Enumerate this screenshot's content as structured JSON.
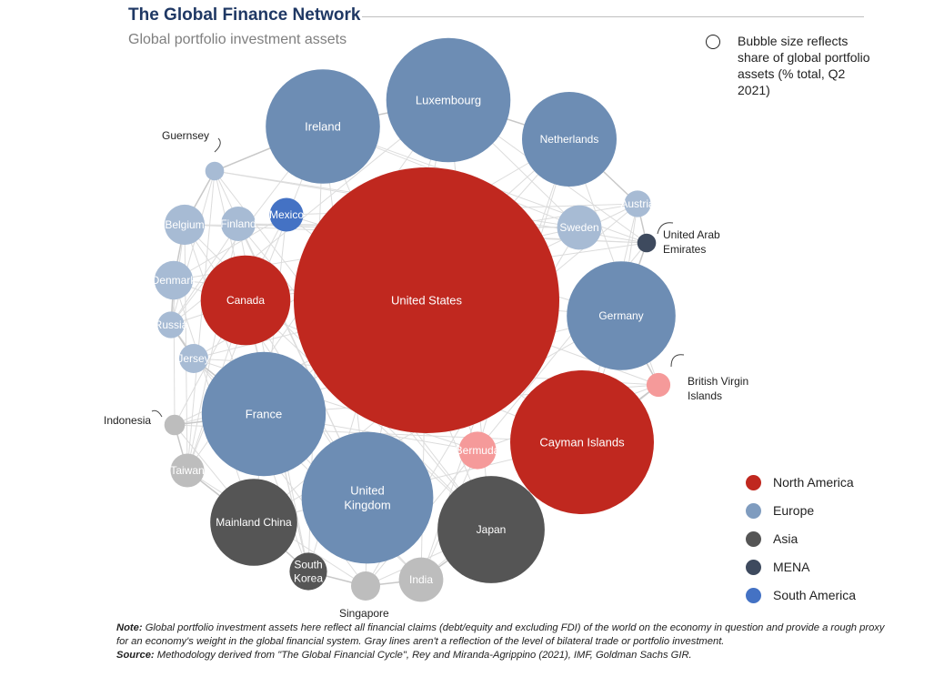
{
  "title": "The Global Finance Network",
  "subtitle": "Global portfolio investment assets",
  "size_note": "Bubble size reflects share of global portfolio assets (% total, Q2 2021)",
  "legend": [
    {
      "label": "North America",
      "color": "#c0281f"
    },
    {
      "label": "Europe",
      "color": "#7f9cbf"
    },
    {
      "label": "Asia",
      "color": "#555555"
    },
    {
      "label": "MENA",
      "color": "#3e4a5e"
    },
    {
      "label": "South America",
      "color": "#4472c4"
    }
  ],
  "note": {
    "label": "Note:",
    "text": "Global portfolio investment assets here reflect all financial claims (debt/equity and excluding FDI) of the world on the economy in question and provide a rough proxy for an economy's weight in the global financial system. Gray lines aren't a reflection of the level of bilateral trade or portfolio investment."
  },
  "source": {
    "label": "Source:",
    "text": "Methodology derived from \"The Global Financial Cycle\", Rey and Miranda-Agrippino (2021), IMF, Goldman Sachs GIR."
  },
  "chart_data": {
    "type": "bubble",
    "size_measure": "share of global portfolio assets (% total, Q2 2021)",
    "colors": {
      "north_america": "#c0281f",
      "europe": "#6d8db4",
      "europe_light": "#a7bbd4",
      "asia": "#555555",
      "asia_light": "#bdbdbd",
      "mena": "#3e4a5e",
      "south_america": "#4472c4",
      "offshore_light": "#f59a9a"
    },
    "bubbles": [
      {
        "label": "United States",
        "region": "North America",
        "shade": "north_america",
        "relative_size": 1.0
      },
      {
        "label": "Luxembourg",
        "region": "Europe",
        "shade": "europe",
        "relative_size": 0.219
      },
      {
        "label": "Cayman Islands",
        "region": "North America",
        "shade": "north_america",
        "relative_size": 0.293
      },
      {
        "label": "United Kingdom",
        "region": "Europe",
        "shade": "europe",
        "relative_size": 0.246
      },
      {
        "label": "France",
        "region": "Europe",
        "shade": "europe",
        "relative_size": 0.218
      },
      {
        "label": "Ireland",
        "region": "Europe",
        "shade": "europe",
        "relative_size": 0.185
      },
      {
        "label": "Germany",
        "region": "Europe",
        "shade": "europe",
        "relative_size": 0.168
      },
      {
        "label": "Japan",
        "region": "Asia",
        "shade": "asia",
        "relative_size": 0.163
      },
      {
        "label": "Netherlands",
        "region": "Europe",
        "shade": "europe",
        "relative_size": 0.127
      },
      {
        "label": "Canada",
        "region": "North America",
        "shade": "north_america",
        "relative_size": 0.114
      },
      {
        "label": "Mainland China",
        "region": "Asia",
        "shade": "asia",
        "relative_size": 0.107
      },
      {
        "label": "Sweden",
        "region": "Europe",
        "shade": "europe_light",
        "relative_size": 0.028
      },
      {
        "label": "India",
        "region": "Asia",
        "shade": "asia_light",
        "relative_size": 0.028
      },
      {
        "label": "Belgium",
        "region": "Europe",
        "shade": "europe_light",
        "relative_size": 0.023
      },
      {
        "label": "Denmark",
        "region": "Europe",
        "shade": "europe_light",
        "relative_size": 0.021
      },
      {
        "label": "South Korea",
        "region": "Asia",
        "shade": "asia",
        "relative_size": 0.02
      },
      {
        "label": "Bermuda",
        "region": "North America",
        "shade": "offshore_light",
        "relative_size": 0.02
      },
      {
        "label": "Finland",
        "region": "Europe",
        "shade": "europe_light",
        "relative_size": 0.017
      },
      {
        "label": "Mexico",
        "region": "South America",
        "shade": "south_america",
        "relative_size": 0.016
      },
      {
        "label": "Taiwan",
        "region": "Asia",
        "shade": "asia_light",
        "relative_size": 0.016
      },
      {
        "label": "Jersey",
        "region": "Europe",
        "shade": "europe_light",
        "relative_size": 0.012
      },
      {
        "label": "Singapore",
        "region": "Asia",
        "shade": "asia_light",
        "relative_size": 0.012
      },
      {
        "label": "Austria",
        "region": "Europe",
        "shade": "europe_light",
        "relative_size": 0.01
      },
      {
        "label": "Russia",
        "region": "Europe",
        "shade": "europe_light",
        "relative_size": 0.01
      },
      {
        "label": "British Virgin Islands",
        "region": "North America",
        "shade": "offshore_light",
        "relative_size": 0.008
      },
      {
        "label": "Guernsey",
        "region": "Europe",
        "shade": "europe_light",
        "relative_size": 0.005
      },
      {
        "label": "Indonesia",
        "region": "Asia",
        "shade": "asia_light",
        "relative_size": 0.006
      },
      {
        "label": "United Arab Emirates",
        "region": "MENA",
        "shade": "mena",
        "relative_size": 0.005
      }
    ]
  }
}
